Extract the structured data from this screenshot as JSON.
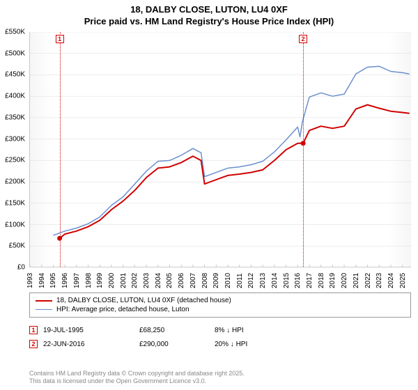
{
  "title_line1": "18, DALBY CLOSE, LUTON, LU4 0XF",
  "title_line2": "Price paid vs. HM Land Registry's House Price Index (HPI)",
  "chart": {
    "type": "line",
    "background_color": "#ffffff",
    "grid_color": "#dcdcdc",
    "axis_color": "#c7c7c7",
    "x_years": [
      1993,
      1994,
      1995,
      1996,
      1997,
      1998,
      1999,
      2000,
      2001,
      2002,
      2003,
      2004,
      2005,
      2006,
      2007,
      2008,
      2009,
      2010,
      2011,
      2012,
      2013,
      2014,
      2015,
      2016,
      2017,
      2018,
      2019,
      2020,
      2021,
      2022,
      2023,
      2024,
      2025
    ],
    "xlim": [
      1993,
      2025.8
    ],
    "ylim": [
      0,
      550
    ],
    "y_ticks": [
      0,
      50,
      100,
      150,
      200,
      250,
      300,
      350,
      400,
      450,
      500,
      550
    ],
    "y_tick_labels": [
      "£0",
      "£50K",
      "£100K",
      "£150K",
      "£200K",
      "£250K",
      "£300K",
      "£350K",
      "£400K",
      "£450K",
      "£500K",
      "£550K"
    ],
    "series": [
      {
        "name": "property",
        "label": "18, DALBY CLOSE, LUTON, LU4 0XF (detached house)",
        "color": "#d00000",
        "line_width": 2,
        "points": [
          [
            1995.55,
            68
          ],
          [
            1996,
            78
          ],
          [
            1997,
            85
          ],
          [
            1998,
            95
          ],
          [
            1999,
            110
          ],
          [
            2000,
            135
          ],
          [
            2001,
            155
          ],
          [
            2002,
            180
          ],
          [
            2003,
            210
          ],
          [
            2004,
            232
          ],
          [
            2005,
            235
          ],
          [
            2006,
            245
          ],
          [
            2007,
            260
          ],
          [
            2007.7,
            250
          ],
          [
            2008,
            195
          ],
          [
            2009,
            205
          ],
          [
            2010,
            215
          ],
          [
            2011,
            218
          ],
          [
            2012,
            222
          ],
          [
            2013,
            228
          ],
          [
            2014,
            250
          ],
          [
            2015,
            275
          ],
          [
            2016,
            290
          ],
          [
            2016.47,
            290
          ],
          [
            2017,
            320
          ],
          [
            2018,
            330
          ],
          [
            2019,
            325
          ],
          [
            2020,
            330
          ],
          [
            2021,
            370
          ],
          [
            2022,
            380
          ],
          [
            2023,
            372
          ],
          [
            2024,
            365
          ],
          [
            2025,
            362
          ],
          [
            2025.6,
            360
          ]
        ]
      },
      {
        "name": "hpi",
        "label": "HPI: Average price, detached house, Luton",
        "color": "#6a8fce",
        "line_width": 1.5,
        "points": [
          [
            1995,
            75
          ],
          [
            1996,
            85
          ],
          [
            1997,
            92
          ],
          [
            1998,
            102
          ],
          [
            1999,
            118
          ],
          [
            2000,
            145
          ],
          [
            2001,
            165
          ],
          [
            2002,
            195
          ],
          [
            2003,
            225
          ],
          [
            2004,
            248
          ],
          [
            2005,
            250
          ],
          [
            2006,
            262
          ],
          [
            2007,
            278
          ],
          [
            2007.7,
            268
          ],
          [
            2008,
            212
          ],
          [
            2009,
            222
          ],
          [
            2010,
            232
          ],
          [
            2011,
            235
          ],
          [
            2012,
            240
          ],
          [
            2013,
            248
          ],
          [
            2014,
            270
          ],
          [
            2015,
            298
          ],
          [
            2016,
            328
          ],
          [
            2016.2,
            305
          ],
          [
            2016.4,
            340
          ],
          [
            2017,
            398
          ],
          [
            2018,
            408
          ],
          [
            2019,
            400
          ],
          [
            2020,
            405
          ],
          [
            2021,
            452
          ],
          [
            2022,
            468
          ],
          [
            2023,
            470
          ],
          [
            2024,
            458
          ],
          [
            2025,
            455
          ],
          [
            2025.6,
            452
          ]
        ]
      }
    ],
    "sale_markers": [
      {
        "id": "1",
        "year": 1995.55,
        "price_k": 68
      },
      {
        "id": "2",
        "year": 2016.47,
        "price_k": 290
      }
    ]
  },
  "legend": {
    "items": [
      {
        "color": "#d00000",
        "width": 2,
        "label": "18, DALBY CLOSE, LUTON, LU4 0XF (detached house)"
      },
      {
        "color": "#6a8fce",
        "width": 1.5,
        "label": "HPI: Average price, detached house, Luton"
      }
    ]
  },
  "transactions": [
    {
      "id": "1",
      "date": "19-JUL-1995",
      "price": "£68,250",
      "delta": "8% ↓ HPI"
    },
    {
      "id": "2",
      "date": "22-JUN-2016",
      "price": "£290,000",
      "delta": "20% ↓ HPI"
    }
  ],
  "footer_line1": "Contains HM Land Registry data © Crown copyright and database right 2025.",
  "footer_line2": "This data is licensed under the Open Government Licence v3.0."
}
